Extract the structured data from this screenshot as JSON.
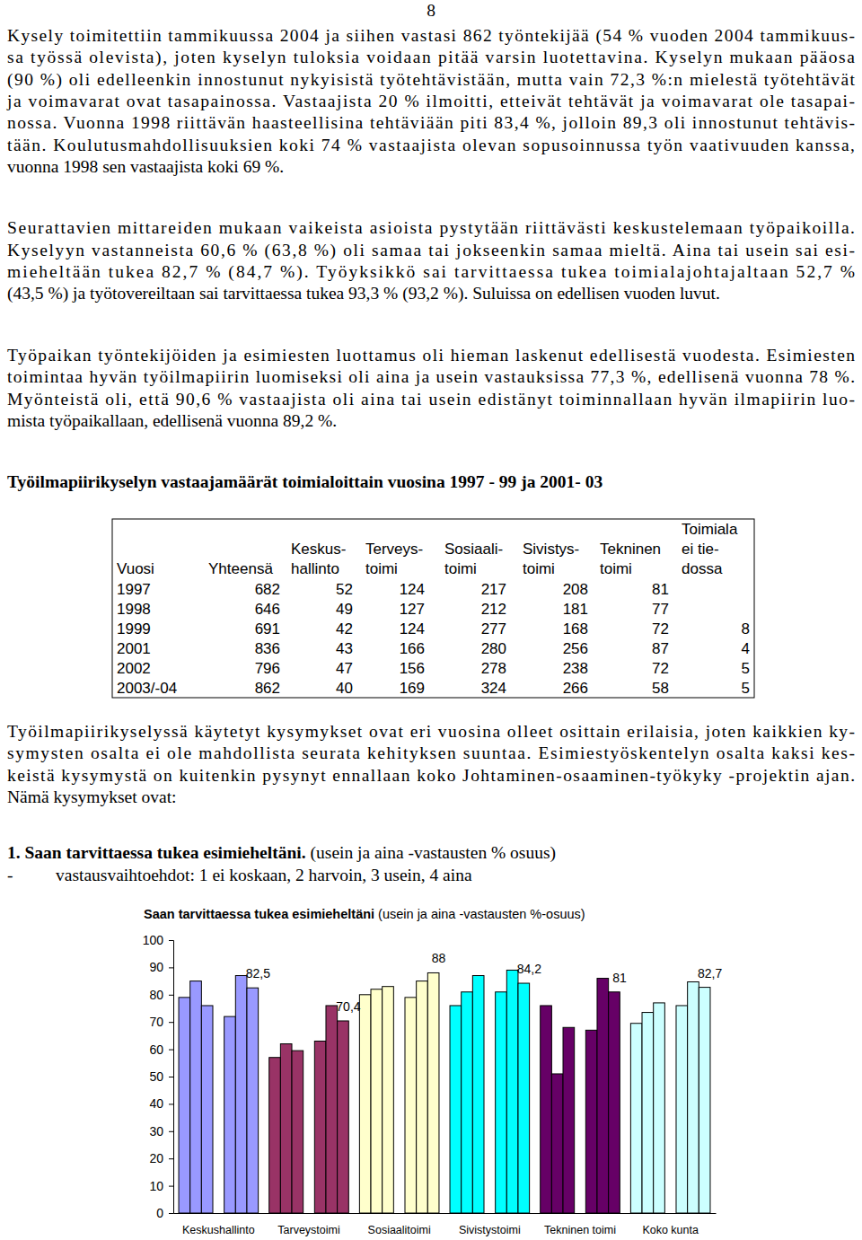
{
  "page_number": "8",
  "intro_paragraphs": [
    [
      "Kysely toimitettiin tammikuussa 2004 ja siihen vastasi 862 työntekijää (54 % vuoden 2004 tammikuus-",
      "sa työssä olevista), joten kyselyn tuloksia voidaan pitää varsin luotettavina. Kyselyn mukaan pääosa",
      "(90 %) oli edelleenkin innostunut nykyisistä työtehtävistään, mutta vain 72,3 %:n mielestä työtehtävät",
      "ja voimavarat ovat tasapainossa. Vastaajista 20 % ilmoitti, etteivät tehtävät ja voimavarat ole tasapai-",
      "nossa. Vuonna 1998 riittävän haasteellisina tehtäviään piti 83,4 %, jolloin 89,3 oli innostunut tehtävis-",
      "tään. Koulutusmahdollisuuksien koki 74 % vastaajista olevan sopusoinnussa työn vaativuuden kanssa,",
      "vuonna 1998 sen vastaajista koki 69 %."
    ],
    [
      "Seurattavien mittareiden mukaan vaikeista asioista pystytään riittävästi keskustelemaan työpaikoilla.",
      "Kyselyyn vastanneista 60,6 % (63,8 %) oli samaa tai jokseenkin samaa mieltä. Aina tai usein sai esi-",
      "mieheltään tukea 82,7 % (84,7 %). Työyksikkö sai tarvittaessa tukea toimialajohtajaltaan 52,7 %",
      "(43,5 %) ja työtovereiltaan sai tarvittaessa tukea 93,3 % (93,2 %). Suluissa on edellisen vuoden luvut."
    ],
    [
      "Työpaikan työntekijöiden ja esimiesten luottamus oli hieman laskenut edellisestä vuodesta. Esimiesten",
      "toimintaa hyvän työilmapiirin luomiseksi oli aina ja usein vastauksissa 77,3 %, edellisenä vuonna 78 %.",
      "Myönteistä oli, että 90,6 % vastaajista oli aina tai usein edistänyt toiminnallaan hyvän ilmapiirin luo-",
      "mista työpaikallaan, edellisenä vuonna 89,2 %."
    ]
  ],
  "table_title": "Työilmapiirikyselyn vastaajamäärät toimialoittain vuosina 1997 - 99 ja 2001- 03",
  "table": {
    "header": [
      [
        "Vuosi"
      ],
      [
        "Yhteensä"
      ],
      [
        "Keskus-",
        "hallinto"
      ],
      [
        "Terveys-",
        "toimi"
      ],
      [
        "Sosiaali-",
        "toimi"
      ],
      [
        "Sivistys-",
        "toimi"
      ],
      [
        "Tekninen",
        "toimi"
      ],
      [
        "Toimiala",
        "ei tie-",
        "dossa"
      ]
    ],
    "rows": [
      [
        "1997",
        682,
        52,
        124,
        217,
        208,
        81,
        null
      ],
      [
        "1998",
        646,
        49,
        127,
        212,
        181,
        77,
        null
      ],
      [
        "1999",
        691,
        42,
        124,
        277,
        168,
        72,
        8
      ],
      [
        "2001",
        836,
        43,
        166,
        280,
        256,
        87,
        4
      ],
      [
        "2002",
        796,
        47,
        156,
        278,
        238,
        72,
        5
      ],
      [
        "2003/-04",
        862,
        40,
        169,
        324,
        266,
        58,
        5
      ]
    ]
  },
  "closing_paragraph": [
    "Työilmapiirikyselyssä käytetyt kysymykset ovat eri vuosina olleet osittain erilaisia, joten kaikkien ky-",
    "symysten osalta ei ole mahdollista seurata kehityksen suuntaa. Esimiestyöskentelyn osalta kaksi kes-",
    "keistä kysymystä on kuitenkin pysynyt ennallaan koko Johtaminen-osaaminen-työkyky -projektin ajan.",
    "Nämä kysymykset ovat:"
  ],
  "question": {
    "title": "1. Saan tarvittaessa tukea esimieheltäni.",
    "note": "(usein ja aina -vastausten % osuus)",
    "bullet": "-",
    "options": "vastausvaihtoehdot: 1 ei koskaan, 2 harvoin, 3 usein, 4 aina"
  },
  "chart_data": {
    "type": "bar",
    "title": "Saan tarvittaessa tukea esimieheltäni",
    "subtitle": "(usein ja aina -vastausten %-osuus)",
    "categories": [
      "Keskushallinto",
      "Tarveystoimi",
      "Sosiaalitoimi",
      "Sivistystoimi",
      "Tekninen toimi",
      "Koko kunta"
    ],
    "colors": [
      "#9999ff",
      "#993366",
      "#ffffcc",
      "#00ffff",
      "#660066",
      "#ccffff"
    ],
    "series": [
      {
        "values": [
          79,
          57,
          80,
          76,
          76,
          69.5
        ]
      },
      {
        "values": [
          85,
          62,
          82,
          81,
          51,
          73.5
        ]
      },
      {
        "values": [
          76,
          59.5,
          83,
          87,
          68,
          77
        ]
      },
      {
        "values": [
          null,
          null,
          null,
          null,
          null,
          null
        ]
      },
      {
        "values": [
          72,
          63,
          79,
          81,
          67,
          76
        ]
      },
      {
        "values": [
          87,
          76,
          85,
          89,
          86,
          84.7
        ]
      },
      {
        "values": [
          82.5,
          70.4,
          88,
          84.2,
          81,
          82.7
        ],
        "data_labels": true,
        "value_labels": [
          "82,5",
          "70,4",
          "88",
          "84,2",
          "81",
          "82,7"
        ]
      }
    ],
    "ylim": [
      0,
      100
    ],
    "yticks": [
      0,
      10,
      20,
      30,
      40,
      50,
      60,
      70,
      80,
      90,
      100
    ],
    "grid": false
  }
}
